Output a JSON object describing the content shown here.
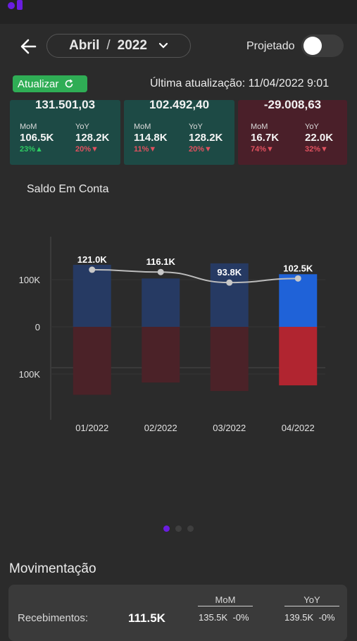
{
  "header": {
    "month": "Abril",
    "separator": "/",
    "year": "2022",
    "projetado_label": "Projetado",
    "projetado_on": false
  },
  "update": {
    "button_label": "Atualizar",
    "last_update": "Última atualização: 11/04/2022 9:01"
  },
  "summary_cards": [
    {
      "total": "131.501,03",
      "mom_label": "MoM",
      "mom_value": "106.5K",
      "mom_pct": "23%",
      "mom_dir": "up",
      "yoy_label": "YoY",
      "yoy_value": "128.2K",
      "yoy_pct": "20%",
      "yoy_dir": "down",
      "color": "#1d4a45"
    },
    {
      "total": "102.492,40",
      "mom_label": "MoM",
      "mom_value": "114.8K",
      "mom_pct": "11%",
      "mom_dir": "down",
      "yoy_label": "YoY",
      "yoy_value": "128.2K",
      "yoy_pct": "20%",
      "yoy_dir": "down",
      "color": "#1d4a45"
    },
    {
      "total": "-29.008,63",
      "mom_label": "MoM",
      "mom_value": "16.7K",
      "mom_pct": "74%",
      "mom_dir": "down",
      "yoy_label": "YoY",
      "yoy_value": "22.0K",
      "yoy_pct": "32%",
      "yoy_dir": "down",
      "color": "#4a1f29"
    }
  ],
  "chart_title": "Saldo Em Conta",
  "chart_data": {
    "type": "bar",
    "title": "Saldo Em Conta",
    "categories": [
      "01/2022",
      "02/2022",
      "03/2022",
      "04/2022"
    ],
    "series": [
      {
        "values": [
          131.5,
          102.5,
          134.5,
          111.5
        ]
      },
      {
        "values": [
          -144,
          -118,
          -136,
          -124
        ]
      },
      {
        "values": [
          121.0,
          116.1,
          93.8,
          102.5
        ]
      }
    ],
    "point_labels": [
      "121.0K",
      "116.1K",
      "93.8K",
      "102.5K"
    ],
    "ylim": [
      -200,
      200
    ],
    "yticks": [
      {
        "value": 100,
        "label": "100K"
      },
      {
        "value": 0,
        "label": "0"
      },
      {
        "value": -100,
        "label": "100K"
      }
    ],
    "grid": true,
    "highlight_index": 3,
    "colors": {
      "pos_dim": "#263a63",
      "pos_active": "#1f62d8",
      "neg_dim": "#4b2228",
      "neg_active": "#b12530",
      "line": "#bdbdbd"
    }
  },
  "pager": {
    "count": 3,
    "active": 0,
    "active_color": "#6a1de0",
    "inactive_color": "#3f3f3f"
  },
  "movimentacao": {
    "title": "Movimentação",
    "row_label": "Recebimentos:",
    "row_value": "111.5K",
    "mom_header": "MoM",
    "mom_value": "135.5K",
    "mom_pct": "-0%",
    "yoy_header": "YoY",
    "yoy_value": "139.5K",
    "yoy_pct": "-0%"
  }
}
